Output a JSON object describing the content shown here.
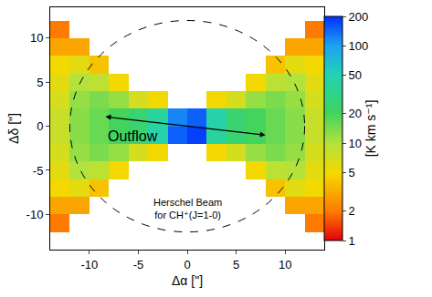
{
  "chart_data": {
    "type": "heatmap",
    "x_label": "Δα [\"]",
    "y_label": "Δδ [\"]",
    "xlim": [
      -14,
      14
    ],
    "ylim": [
      -14,
      13.5
    ],
    "xticks": [
      -10,
      -5,
      0,
      5,
      10
    ],
    "yticks": [
      -10,
      -5,
      0,
      5,
      10
    ],
    "x": [
      -13,
      -11,
      -9,
      -7,
      -5,
      -3,
      -1,
      1,
      3,
      5,
      7,
      9,
      11,
      13
    ],
    "y": [
      -13,
      -11,
      -9,
      -7,
      -5,
      -3,
      -1,
      1,
      3,
      5,
      7,
      9,
      11,
      13
    ],
    "cells": [
      [
        null,
        null,
        null,
        null,
        null,
        null,
        null,
        null,
        null,
        null,
        null,
        null,
        null,
        null
      ],
      [
        2,
        null,
        null,
        null,
        null,
        null,
        null,
        null,
        null,
        null,
        null,
        null,
        null,
        2
      ],
      [
        3,
        3,
        null,
        null,
        null,
        null,
        null,
        null,
        null,
        null,
        null,
        null,
        3,
        3
      ],
      [
        5,
        6,
        4,
        null,
        null,
        null,
        null,
        null,
        null,
        null,
        null,
        4,
        6,
        5
      ],
      [
        6,
        10,
        9,
        5,
        null,
        null,
        null,
        null,
        null,
        null,
        5,
        9,
        10,
        6
      ],
      [
        7,
        12,
        14,
        12,
        7,
        5,
        null,
        null,
        5,
        7,
        12,
        14,
        12,
        7
      ],
      [
        8,
        13,
        16,
        20,
        25,
        45,
        150,
        180,
        40,
        25,
        20,
        16,
        13,
        8
      ],
      [
        8,
        13,
        16,
        20,
        25,
        40,
        120,
        150,
        45,
        25,
        20,
        16,
        13,
        8
      ],
      [
        7,
        12,
        14,
        12,
        7,
        5,
        null,
        null,
        5,
        7,
        12,
        14,
        12,
        7
      ],
      [
        6,
        10,
        9,
        5,
        null,
        null,
        null,
        null,
        null,
        null,
        5,
        9,
        10,
        6
      ],
      [
        5,
        6,
        4,
        null,
        null,
        null,
        null,
        null,
        null,
        null,
        null,
        4,
        6,
        5
      ],
      [
        3,
        3,
        null,
        null,
        null,
        null,
        null,
        null,
        null,
        null,
        null,
        null,
        3,
        3
      ],
      [
        2,
        null,
        null,
        null,
        null,
        null,
        null,
        null,
        null,
        null,
        null,
        null,
        null,
        2
      ],
      [
        null,
        null,
        null,
        null,
        null,
        null,
        null,
        null,
        null,
        null,
        null,
        null,
        null,
        null
      ]
    ],
    "colorbar": {
      "title": "[K km s⁻¹]",
      "range": [
        1,
        200
      ],
      "ticks": [
        1,
        2,
        5,
        10,
        20,
        50,
        100,
        200
      ],
      "log": true
    },
    "annotations": {
      "outflow": "Outflow",
      "beam_label": [
        "Herschel Beam",
        "for CH⁺(J=1-0)"
      ]
    },
    "beam_radius": 12
  }
}
